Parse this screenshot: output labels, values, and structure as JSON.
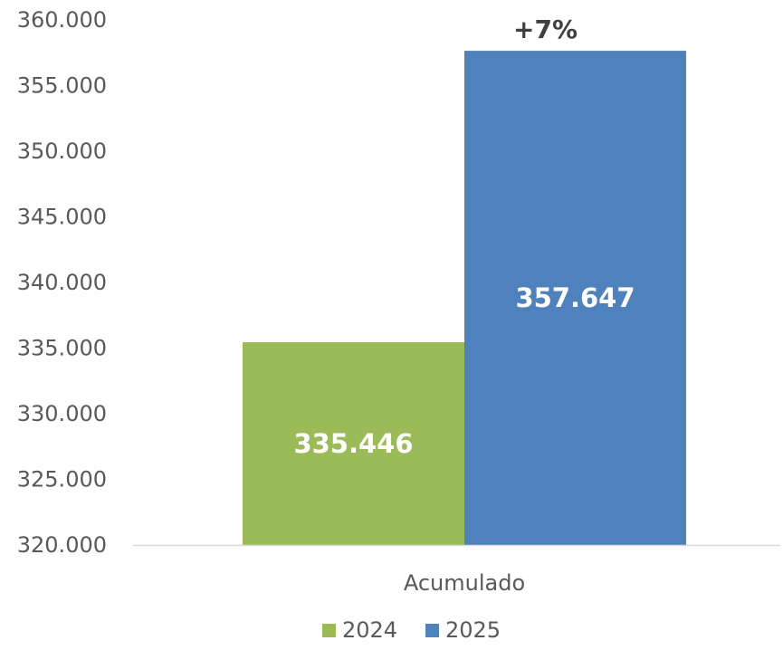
{
  "chart_data": {
    "type": "bar",
    "categories": [
      "Acumulado"
    ],
    "series": [
      {
        "name": "2024",
        "values": [
          335446
        ],
        "label": "335.446",
        "color": "#9BBB59"
      },
      {
        "name": "2025",
        "values": [
          357647
        ],
        "label": "357.647",
        "color": "#4F81BD"
      }
    ],
    "ylim": [
      320000,
      360000
    ],
    "yticks": [
      320000,
      325000,
      330000,
      335000,
      340000,
      345000,
      350000,
      355000,
      360000
    ],
    "ytick_labels": [
      "320.000",
      "325.000",
      "330.000",
      "335.000",
      "340.000",
      "345.000",
      "350.000",
      "355.000",
      "360.000"
    ],
    "annotation": "+7%",
    "grid": false,
    "legend_position": "bottom",
    "axis_color": "#D9D9D9",
    "text_color": "#595959"
  }
}
